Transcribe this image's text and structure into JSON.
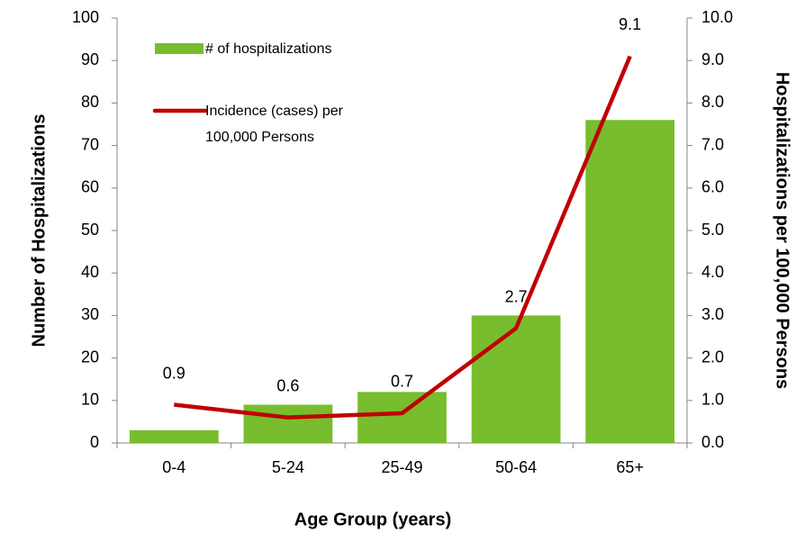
{
  "chart_data": {
    "type": "bar_line",
    "categories": [
      "0-4",
      "5-24",
      "25-49",
      "50-64",
      "65+"
    ],
    "series": [
      {
        "name": "# of hospitalizations",
        "color": "#77bd2d",
        "type": "bar",
        "values": [
          3,
          9,
          12,
          30,
          76
        ]
      },
      {
        "name": "Incidence (cases) per 100,000 Persons",
        "color": "#c00000",
        "type": "line",
        "axis": "y2",
        "values": [
          0.9,
          0.6,
          0.7,
          2.7,
          9.1
        ]
      }
    ],
    "x_label": "Age Group (years)",
    "y_label": "Number of Hospitalizations",
    "y2_label": "Hospitalizations per 100,000 Persons",
    "ylim": [
      0,
      100
    ],
    "yticks": [
      0,
      10,
      20,
      30,
      40,
      50,
      60,
      70,
      80,
      90,
      100
    ],
    "y2lim": [
      0,
      10
    ],
    "y2ticks": [
      {
        "value": 0,
        "label": "0.0"
      },
      {
        "value": 1,
        "label": "1.0"
      },
      {
        "value": 2,
        "label": "2.0"
      },
      {
        "value": 3,
        "label": "3.0"
      },
      {
        "value": 4,
        "label": "4.0"
      },
      {
        "value": 5,
        "label": "5.0"
      },
      {
        "value": 6,
        "label": "6.0"
      },
      {
        "value": 7,
        "label": "7.0"
      },
      {
        "value": 8,
        "label": "8.0"
      },
      {
        "value": 9,
        "label": "9.0"
      },
      {
        "value": 10,
        "label": "10.0"
      }
    ],
    "legend": "upper-left"
  }
}
